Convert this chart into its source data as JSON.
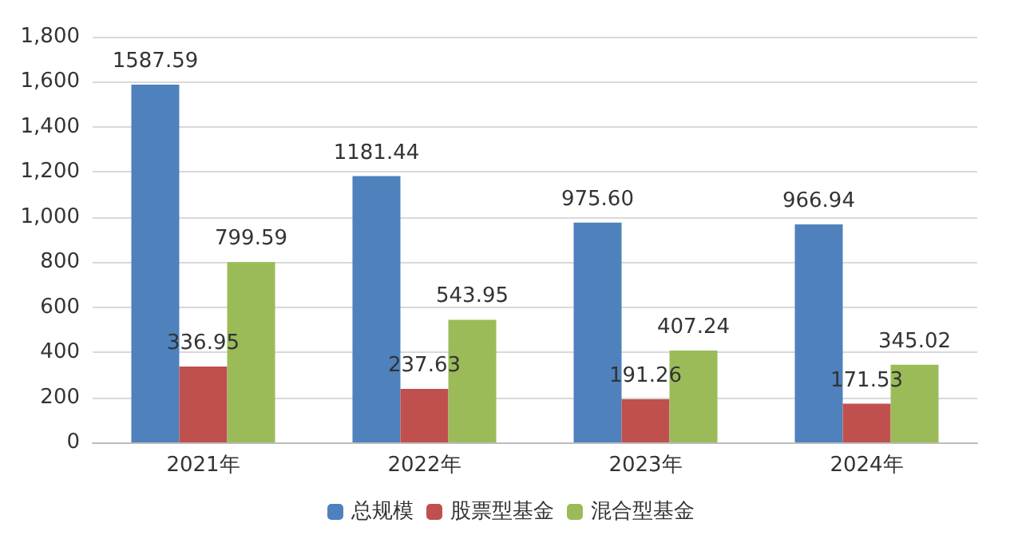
{
  "chart_data": {
    "type": "bar",
    "categories": [
      "2021年",
      "2022年",
      "2023年",
      "2024年"
    ],
    "series": [
      {
        "name": "总规模",
        "color": "#4f81bd",
        "values": [
          1587.59,
          1181.44,
          975.6,
          966.94
        ],
        "value_labels": [
          "1587.59",
          "1181.44",
          "975.60",
          "966.94"
        ]
      },
      {
        "name": "股票型基金",
        "color": "#c0504d",
        "values": [
          336.95,
          237.63,
          191.26,
          171.53
        ],
        "value_labels": [
          "336.95",
          "237.63",
          "191.26",
          "171.53"
        ]
      },
      {
        "name": "混合型基金",
        "color": "#9bbb59",
        "values": [
          799.59,
          543.95,
          407.24,
          345.02
        ],
        "value_labels": [
          "799.59",
          "543.95",
          "407.24",
          "345.02"
        ]
      }
    ],
    "ylim": [
      0,
      1800
    ],
    "yticks": [
      0,
      200,
      400,
      600,
      800,
      {
        "value": 1000,
        "label": "1,000"
      },
      {
        "value": 1200,
        "label": "1,200"
      },
      {
        "value": 1400,
        "label": "1,400"
      },
      {
        "value": 1600,
        "label": "1,600"
      },
      {
        "value": 1800,
        "label": "1,800"
      }
    ],
    "grid": "y",
    "legend": "bottom"
  }
}
